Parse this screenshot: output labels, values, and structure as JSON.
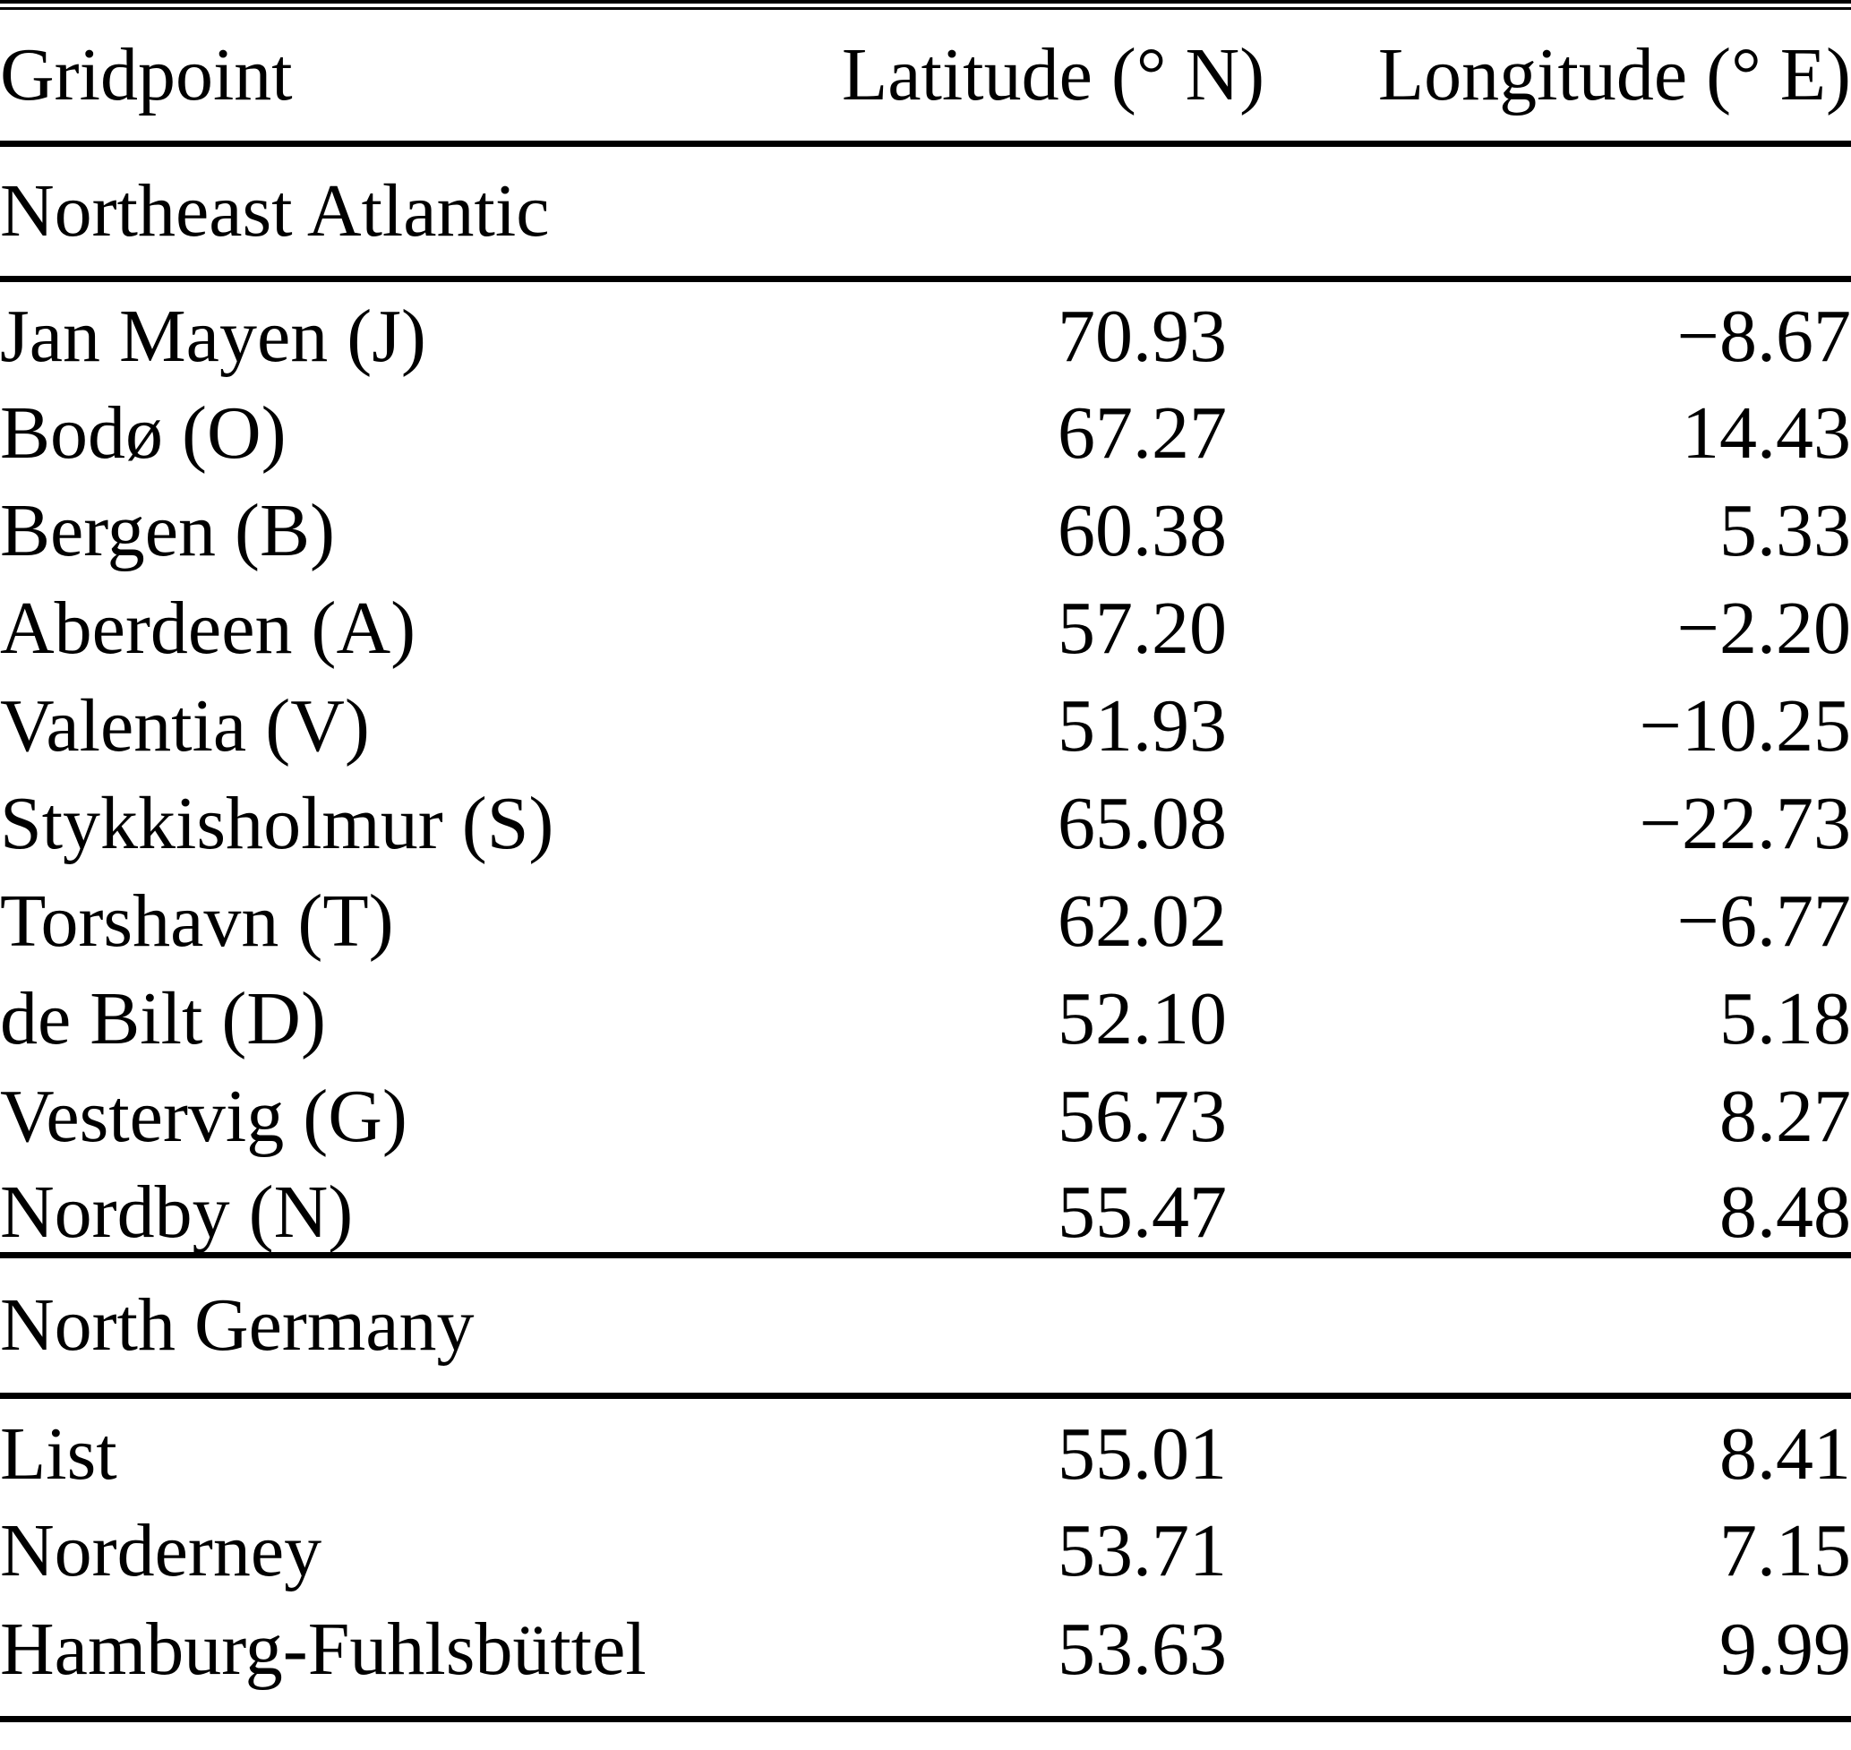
{
  "table": {
    "header": {
      "gridpoint": "Gridpoint",
      "latitude": "Latitude (° N)",
      "longitude": "Longitude (° E)"
    },
    "sections": [
      {
        "title": "Northeast Atlantic",
        "rows": [
          {
            "name": "Jan Mayen (J)",
            "lat": "70.93",
            "lon": "−8.67"
          },
          {
            "name": "Bodø (O)",
            "lat": "67.27",
            "lon": "14.43"
          },
          {
            "name": "Bergen (B)",
            "lat": "60.38",
            "lon": "5.33"
          },
          {
            "name": "Aberdeen (A)",
            "lat": "57.20",
            "lon": "−2.20"
          },
          {
            "name": "Valentia (V)",
            "lat": "51.93",
            "lon": "−10.25"
          },
          {
            "name": "Stykkisholmur (S)",
            "lat": "65.08",
            "lon": "−22.73"
          },
          {
            "name": "Torshavn (T)",
            "lat": "62.02",
            "lon": "−6.77"
          },
          {
            "name": "de Bilt (D)",
            "lat": "52.10",
            "lon": "5.18"
          },
          {
            "name": "Vestervig (G)",
            "lat": "56.73",
            "lon": "8.27"
          },
          {
            "name": "Nordby (N)",
            "lat": "55.47",
            "lon": "8.48"
          }
        ]
      },
      {
        "title": "North Germany",
        "rows": [
          {
            "name": "List",
            "lat": "55.01",
            "lon": "8.41"
          },
          {
            "name": "Norderney",
            "lat": "53.71",
            "lon": "7.15"
          },
          {
            "name": "Hamburg-Fuhlsbüttel",
            "lat": "53.63",
            "lon": "9.99"
          }
        ]
      }
    ]
  },
  "colors": {
    "text": "#000000",
    "background": "#ffffff",
    "rule": "#000000"
  }
}
